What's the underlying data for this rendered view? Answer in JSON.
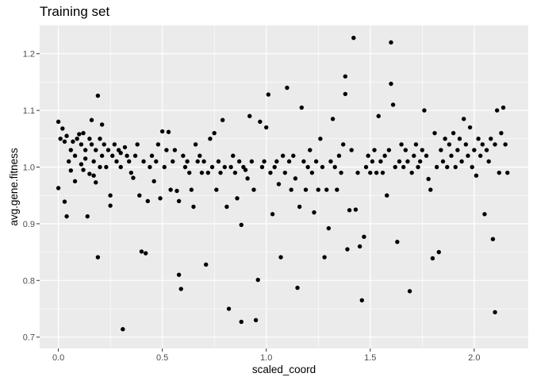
{
  "chart_data": {
    "type": "scatter",
    "title": "Training set",
    "xlabel": "scaled_coord",
    "ylabel": "avg.gene.fitness",
    "xlim": [
      -0.09,
      2.26
    ],
    "ylim": [
      0.68,
      1.25
    ],
    "xticks": [
      "0.0",
      "0.5",
      "1.0",
      "1.5",
      "2.0"
    ],
    "yticks": [
      "0.7",
      "0.8",
      "0.9",
      "1.0",
      "1.1",
      "1.2"
    ],
    "grid": true,
    "colors": {
      "panel": "#ebebeb",
      "grid_major": "#ffffff",
      "point": "#000000"
    },
    "series": [
      {
        "points": [
          [
            0.0,
            1.08
          ],
          [
            0.0,
            0.963
          ],
          [
            0.01,
            1.05
          ],
          [
            0.02,
            1.068
          ],
          [
            0.03,
            1.045
          ],
          [
            0.03,
            0.939
          ],
          [
            0.04,
            0.913
          ],
          [
            0.04,
            1.055
          ],
          [
            0.05,
            1.01
          ],
          [
            0.06,
            1.03
          ],
          [
            0.06,
            0.994
          ],
          [
            0.07,
            1.045
          ],
          [
            0.08,
            1.02
          ],
          [
            0.08,
            0.975
          ],
          [
            0.09,
            1.05
          ],
          [
            0.1,
            1.058
          ],
          [
            0.11,
            1.04
          ],
          [
            0.11,
            1.005
          ],
          [
            0.12,
            1.06
          ],
          [
            0.12,
            0.995
          ],
          [
            0.13,
            1.03
          ],
          [
            0.13,
            1.015
          ],
          [
            0.14,
            0.913
          ],
          [
            0.15,
            1.05
          ],
          [
            0.15,
            0.988
          ],
          [
            0.16,
            1.083
          ],
          [
            0.16,
            1.04
          ],
          [
            0.17,
            1.01
          ],
          [
            0.17,
            0.985
          ],
          [
            0.18,
            1.03
          ],
          [
            0.18,
            0.973
          ],
          [
            0.19,
            1.126
          ],
          [
            0.19,
            0.841
          ],
          [
            0.2,
            1.05
          ],
          [
            0.2,
            1.0
          ],
          [
            0.21,
            1.075
          ],
          [
            0.21,
            1.02
          ],
          [
            0.22,
            1.04
          ],
          [
            0.23,
            1.0
          ],
          [
            0.24,
            1.03
          ],
          [
            0.25,
            0.95
          ],
          [
            0.25,
            0.932
          ],
          [
            0.26,
            1.02
          ],
          [
            0.27,
            1.04
          ],
          [
            0.28,
            1.01
          ],
          [
            0.29,
            1.03
          ],
          [
            0.3,
            1.0
          ],
          [
            0.3,
            1.025
          ],
          [
            0.31,
            0.714
          ],
          [
            0.32,
            1.035
          ],
          [
            0.33,
            1.02
          ],
          [
            0.34,
            1.01
          ],
          [
            0.35,
            0.99
          ],
          [
            0.36,
            0.981
          ],
          [
            0.37,
            1.02
          ],
          [
            0.38,
            1.04
          ],
          [
            0.39,
            0.95
          ],
          [
            0.4,
            0.851
          ],
          [
            0.41,
            1.01
          ],
          [
            0.42,
            0.848
          ],
          [
            0.43,
            0.94
          ],
          [
            0.44,
            1.0
          ],
          [
            0.45,
            1.02
          ],
          [
            0.46,
            0.975
          ],
          [
            0.47,
            1.01
          ],
          [
            0.48,
            1.04
          ],
          [
            0.49,
            0.945
          ],
          [
            0.5,
            1.063
          ],
          [
            0.51,
            1.0
          ],
          [
            0.52,
            1.03
          ],
          [
            0.53,
            1.062
          ],
          [
            0.54,
            0.96
          ],
          [
            0.55,
            1.01
          ],
          [
            0.56,
            1.03
          ],
          [
            0.57,
            0.958
          ],
          [
            0.58,
            0.94
          ],
          [
            0.58,
            0.81
          ],
          [
            0.59,
            0.785
          ],
          [
            0.6,
            1.02
          ],
          [
            0.61,
            1.0
          ],
          [
            0.62,
            1.01
          ],
          [
            0.63,
            0.99
          ],
          [
            0.64,
            0.96
          ],
          [
            0.65,
            0.93
          ],
          [
            0.66,
            1.04
          ],
          [
            0.67,
            1.01
          ],
          [
            0.68,
            1.02
          ],
          [
            0.69,
            0.99
          ],
          [
            0.7,
            1.01
          ],
          [
            0.71,
            0.828
          ],
          [
            0.72,
            0.99
          ],
          [
            0.73,
            1.05
          ],
          [
            0.74,
            1.0
          ],
          [
            0.75,
            1.06
          ],
          [
            0.76,
            0.96
          ],
          [
            0.77,
            1.01
          ],
          [
            0.78,
            0.99
          ],
          [
            0.79,
            1.083
          ],
          [
            0.8,
            1.0
          ],
          [
            0.81,
            0.93
          ],
          [
            0.82,
            0.75
          ],
          [
            0.83,
            1.0
          ],
          [
            0.84,
            1.02
          ],
          [
            0.85,
            0.99
          ],
          [
            0.86,
            0.945
          ],
          [
            0.87,
            1.01
          ],
          [
            0.88,
            0.898
          ],
          [
            0.88,
            0.727
          ],
          [
            0.89,
            1.0
          ],
          [
            0.9,
            0.995
          ],
          [
            0.91,
            0.98
          ],
          [
            0.92,
            1.09
          ],
          [
            0.93,
            1.01
          ],
          [
            0.94,
            0.96
          ],
          [
            0.95,
            0.73
          ],
          [
            0.96,
            0.801
          ],
          [
            0.97,
            1.08
          ],
          [
            0.98,
            1.0
          ],
          [
            0.99,
            1.01
          ],
          [
            1.0,
            1.07
          ],
          [
            1.01,
            1.128
          ],
          [
            1.02,
            0.99
          ],
          [
            1.03,
            0.917
          ],
          [
            1.04,
            1.0
          ],
          [
            1.05,
            1.01
          ],
          [
            1.06,
            0.97
          ],
          [
            1.07,
            0.841
          ],
          [
            1.08,
            1.02
          ],
          [
            1.09,
            0.99
          ],
          [
            1.1,
            1.14
          ],
          [
            1.11,
            1.01
          ],
          [
            1.12,
            0.96
          ],
          [
            1.13,
            1.02
          ],
          [
            1.14,
            0.98
          ],
          [
            1.15,
            0.787
          ],
          [
            1.16,
            0.93
          ],
          [
            1.17,
            1.105
          ],
          [
            1.18,
            1.01
          ],
          [
            1.19,
            0.96
          ],
          [
            1.2,
            1.0
          ],
          [
            1.21,
            1.03
          ],
          [
            1.22,
            0.99
          ],
          [
            1.23,
            0.92
          ],
          [
            1.24,
            1.01
          ],
          [
            1.25,
            0.96
          ],
          [
            1.26,
            1.05
          ],
          [
            1.27,
            1.0
          ],
          [
            1.28,
            0.841
          ],
          [
            1.29,
            0.96
          ],
          [
            1.3,
            0.892
          ],
          [
            1.31,
            1.01
          ],
          [
            1.32,
            1.085
          ],
          [
            1.33,
            1.0
          ],
          [
            1.34,
            0.96
          ],
          [
            1.35,
            1.02
          ],
          [
            1.36,
            0.99
          ],
          [
            1.37,
            1.04
          ],
          [
            1.38,
            1.16
          ],
          [
            1.38,
            1.129
          ],
          [
            1.39,
            0.855
          ],
          [
            1.4,
            0.924
          ],
          [
            1.41,
            1.03
          ],
          [
            1.42,
            1.228
          ],
          [
            1.43,
            0.925
          ],
          [
            1.44,
            0.99
          ],
          [
            1.45,
            0.86
          ],
          [
            1.46,
            0.765
          ],
          [
            1.47,
            0.877
          ],
          [
            1.48,
            1.0
          ],
          [
            1.49,
            1.02
          ],
          [
            1.5,
            0.99
          ],
          [
            1.51,
            1.01
          ],
          [
            1.52,
            1.03
          ],
          [
            1.53,
            0.99
          ],
          [
            1.54,
            1.09
          ],
          [
            1.55,
            1.01
          ],
          [
            1.56,
            0.99
          ],
          [
            1.57,
            1.02
          ],
          [
            1.58,
            0.95
          ],
          [
            1.59,
            1.03
          ],
          [
            1.6,
            1.22
          ],
          [
            1.6,
            1.147
          ],
          [
            1.61,
            1.11
          ],
          [
            1.62,
            1.0
          ],
          [
            1.63,
            0.868
          ],
          [
            1.64,
            1.01
          ],
          [
            1.65,
            1.04
          ],
          [
            1.66,
            1.0
          ],
          [
            1.67,
            1.03
          ],
          [
            1.68,
            1.01
          ],
          [
            1.69,
            0.781
          ],
          [
            1.7,
            0.99
          ],
          [
            1.71,
            1.02
          ],
          [
            1.72,
            1.04
          ],
          [
            1.73,
            1.0
          ],
          [
            1.74,
            1.01
          ],
          [
            1.75,
            1.03
          ],
          [
            1.76,
            1.1
          ],
          [
            1.77,
            1.02
          ],
          [
            1.78,
            0.979
          ],
          [
            1.79,
            0.96
          ],
          [
            1.8,
            0.839
          ],
          [
            1.81,
            1.06
          ],
          [
            1.82,
            1.0
          ],
          [
            1.83,
            0.85
          ],
          [
            1.84,
            1.03
          ],
          [
            1.85,
            1.01
          ],
          [
            1.86,
            1.05
          ],
          [
            1.87,
            1.0
          ],
          [
            1.88,
            1.04
          ],
          [
            1.89,
            1.02
          ],
          [
            1.9,
            1.06
          ],
          [
            1.91,
            1.0
          ],
          [
            1.92,
            1.03
          ],
          [
            1.93,
            1.05
          ],
          [
            1.94,
            1.01
          ],
          [
            1.95,
            1.085
          ],
          [
            1.96,
            1.04
          ],
          [
            1.97,
            1.02
          ],
          [
            1.98,
            1.07
          ],
          [
            1.99,
            1.0
          ],
          [
            2.0,
            1.03
          ],
          [
            2.01,
            0.985
          ],
          [
            2.02,
            1.05
          ],
          [
            2.03,
            1.02
          ],
          [
            2.04,
            1.04
          ],
          [
            2.05,
            0.917
          ],
          [
            2.06,
            1.03
          ],
          [
            2.07,
            1.01
          ],
          [
            2.08,
            1.05
          ],
          [
            2.09,
            0.873
          ],
          [
            2.1,
            0.744
          ],
          [
            2.1,
            1.04
          ],
          [
            2.11,
            1.1
          ],
          [
            2.12,
            0.99
          ],
          [
            2.13,
            1.06
          ],
          [
            2.14,
            1.105
          ],
          [
            2.15,
            1.04
          ],
          [
            2.16,
            0.99
          ]
        ]
      }
    ]
  }
}
